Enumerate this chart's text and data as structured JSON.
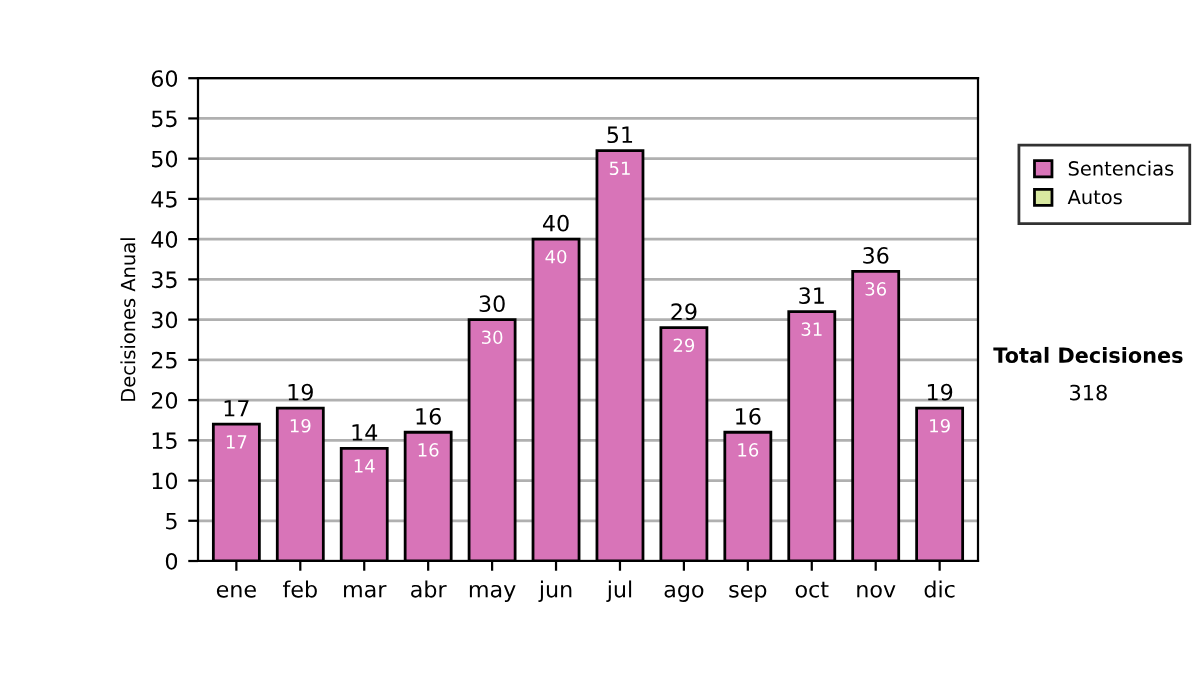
{
  "chart_data": {
    "type": "bar",
    "ylabel": "Decisiones Anual",
    "categories": [
      "ene",
      "feb",
      "mar",
      "abr",
      "may",
      "jun",
      "jul",
      "ago",
      "sep",
      "oct",
      "nov",
      "dic"
    ],
    "series": [
      {
        "name": "Sentencias",
        "color": "#d874b8",
        "values": [
          17,
          19,
          14,
          16,
          30,
          40,
          51,
          29,
          16,
          31,
          36,
          19
        ],
        "value_labels": [
          "17",
          "19",
          "14",
          "16",
          "30",
          "40",
          "51",
          "29",
          "16",
          "31",
          "36",
          "19"
        ]
      },
      {
        "name": "Autos",
        "color": "#d8e8a0",
        "values": [
          0,
          0,
          0,
          0,
          0,
          0,
          0,
          0,
          0,
          0,
          0,
          0
        ]
      }
    ],
    "stacked": true,
    "totals": [
      "17",
      "19",
      "14",
      "16",
      "30",
      "40",
      "51",
      "29",
      "16",
      "31",
      "36",
      "19"
    ],
    "ylim": [
      0,
      60
    ],
    "yticks": [
      0,
      5,
      10,
      15,
      20,
      25,
      30,
      35,
      40,
      45,
      50,
      55,
      60
    ],
    "grid": "y",
    "legend": "right",
    "annotations": [
      "Total Decisiones",
      "318"
    ]
  }
}
